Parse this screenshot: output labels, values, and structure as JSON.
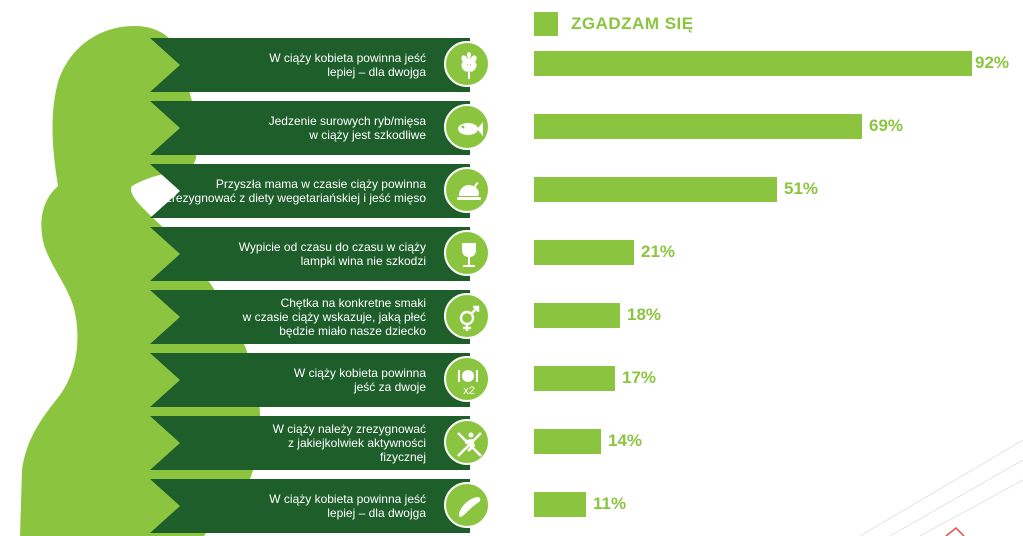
{
  "legend": {
    "label": "ZGADZAM SIĘ",
    "color": "#8bc53f"
  },
  "colors": {
    "banner": "#1d5e2a",
    "accent": "#8bc53f",
    "silhouette": "#8bc53f"
  },
  "chart_data": {
    "type": "bar",
    "orientation": "horizontal",
    "series": [
      {
        "name": "ZGADZAM SIĘ",
        "values": [
          92,
          69,
          51,
          21,
          18,
          17,
          14,
          11
        ]
      }
    ],
    "categories": [
      "W ciąży kobieta powinna jeść\nlepiej – dla dwojga",
      "Jedzenie surowych ryb/mięsa\nw ciąży jest szkodliwe",
      "Przyszła mama w czasie ciąży powinna\nzrezygnować z diety wegetariańskiej i jeść mięso",
      "Wypicie od czasu do czasu w ciąży\nlampki wina nie szkodzi",
      "Chętka na konkretne smaki\nw czasie ciąży wskazuje, jaką płeć\nbędzie miało nasze dziecko",
      "W ciąży kobieta powinna\njeść za dwoje",
      "W ciąży należy zrezygnować\nz jakiejkolwiek aktywności\nfizycznej",
      "W ciąży kobieta powinna jeść\nlepiej – dla dwojga"
    ],
    "value_labels": [
      "92%",
      "69%",
      "51%",
      "21%",
      "18%",
      "17%",
      "14%",
      "11%"
    ],
    "icons": [
      "wheat-icon",
      "fish-icon",
      "roast-chicken-icon",
      "wine-glass-icon",
      "gender-symbol-icon",
      "plate-cutlery-x2-icon",
      "no-exercise-icon",
      "cucumber-icon"
    ],
    "icon_text": {
      "plate-cutlery-x2-icon": "x2"
    },
    "xlim": [
      0,
      100
    ]
  }
}
